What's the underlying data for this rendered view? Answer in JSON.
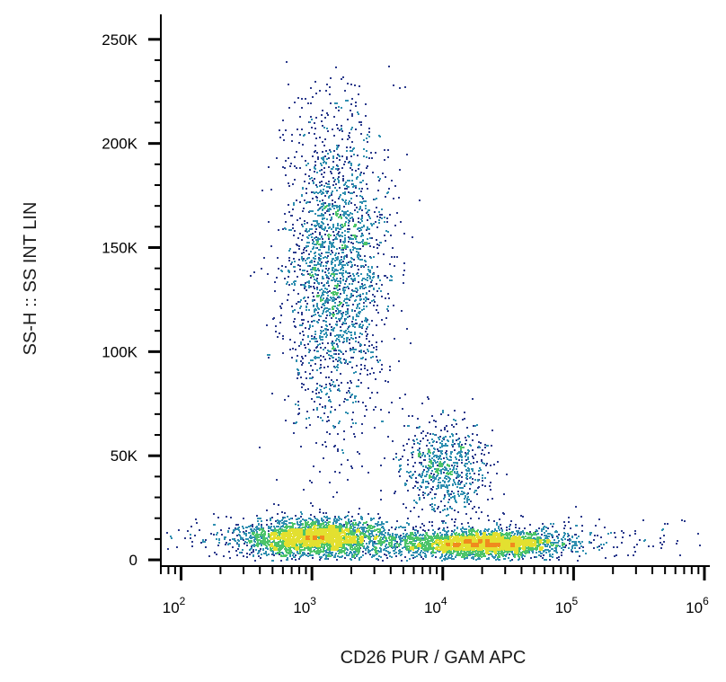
{
  "chart_data": {
    "type": "scatter",
    "title": "",
    "xlabel": "CD26 PUR / GAM APC",
    "ylabel": "SS-H :: SS INT LIN",
    "x_scale": "log",
    "y_scale": "linear",
    "xlim": [
      70,
      1100000
    ],
    "ylim": [
      -3000,
      262000
    ],
    "x_ticks": [
      {
        "value": 100,
        "base": "10",
        "exp": "2"
      },
      {
        "value": 1000,
        "base": "10",
        "exp": "3"
      },
      {
        "value": 10000,
        "base": "10",
        "exp": "4"
      },
      {
        "value": 100000,
        "base": "10",
        "exp": "5"
      },
      {
        "value": 1000000,
        "base": "10",
        "exp": "6"
      }
    ],
    "y_ticks": [
      {
        "value": 0,
        "label": "0"
      },
      {
        "value": 50000,
        "label": "50K"
      },
      {
        "value": 100000,
        "label": "100K"
      },
      {
        "value": 150000,
        "label": "150K"
      },
      {
        "value": 200000,
        "label": "200K"
      },
      {
        "value": 250000,
        "label": "250K"
      }
    ],
    "grid": false,
    "legend": "none",
    "color_scale": [
      "#2b3a8c",
      "#2f8fb0",
      "#4cc46a",
      "#e3e030",
      "#f08a1e",
      "#e8201e"
    ],
    "populations": [
      {
        "x_center": 1500,
        "x_log_spread": 0.2,
        "y_center": 140000,
        "y_spread": 38000,
        "density": "medium"
      },
      {
        "x_center": 1000,
        "x_log_spread": 0.28,
        "y_center": 11000,
        "y_spread": 4500,
        "density": "high"
      },
      {
        "x_center": 20000,
        "x_log_spread": 0.3,
        "y_center": 8000,
        "y_spread": 3000,
        "density": "high"
      },
      {
        "x_center": 10000,
        "x_log_spread": 0.16,
        "y_center": 45000,
        "y_spread": 11000,
        "density": "low"
      },
      {
        "x_center": 8000,
        "x_log_spread": 0.9,
        "y_center": 10000,
        "y_spread": 5500,
        "density": "low"
      }
    ]
  }
}
